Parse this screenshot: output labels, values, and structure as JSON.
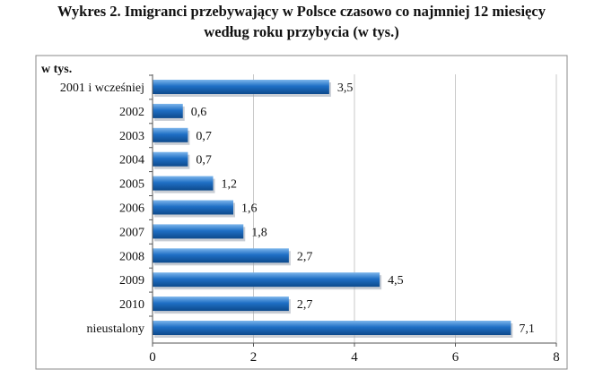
{
  "title_line1": "Wykres 2. Imigranci przebywający w Polsce czasowo co najmniej 12 miesięcy",
  "title_line2": "według roku przybycia (w tys.)",
  "chart_data": {
    "type": "bar",
    "orientation": "horizontal",
    "unit_label": "w tys.",
    "categories": [
      "2001 i wcześniej",
      "2002",
      "2003",
      "2004",
      "2005",
      "2006",
      "2007",
      "2008",
      "2009",
      "2010",
      "nieustalony"
    ],
    "values": [
      3.5,
      0.6,
      0.7,
      0.7,
      1.2,
      1.6,
      1.8,
      2.7,
      4.5,
      2.7,
      7.1
    ],
    "value_labels": [
      "3,5",
      "0,6",
      "0,7",
      "0,7",
      "1,2",
      "1,6",
      "1,8",
      "2,7",
      "4,5",
      "2,7",
      "7,1"
    ],
    "xlim": [
      0,
      8
    ],
    "xticks": [
      0,
      2,
      4,
      6,
      8
    ],
    "grid": true,
    "bar_color": "#1f6fc5"
  }
}
